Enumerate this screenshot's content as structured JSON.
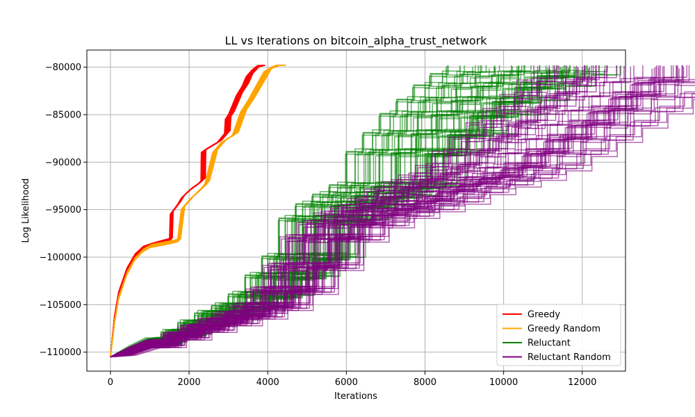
{
  "chart_data": {
    "type": "line",
    "title": "LL vs Iterations on bitcoin_alpha_trust_network",
    "xlabel": "Iterations",
    "ylabel": "Log Likelihood",
    "xlim": [
      -600,
      13100
    ],
    "ylim": [
      -112000,
      -78200
    ],
    "xticks": [
      0,
      2000,
      4000,
      6000,
      8000,
      10000,
      12000
    ],
    "yticks": [
      -110000,
      -105000,
      -100000,
      -95000,
      -90000,
      -85000,
      -80000
    ],
    "grid": true,
    "legend_position": "lower-right",
    "series": [
      {
        "name": "Greedy",
        "color": "#ff0000",
        "runs": 25,
        "x": [
          0,
          100,
          200,
          400,
          600,
          800,
          1000,
          1500,
          1520,
          1700,
          1800,
          2000,
          2200,
          2300,
          2310,
          2500,
          2700,
          2900,
          2920,
          3000,
          3100,
          3200,
          3350,
          3450,
          3600,
          3750
        ],
        "y": [
          -110500,
          -106500,
          -104000,
          -101500,
          -100000,
          -99200,
          -98900,
          -98300,
          -95500,
          -94500,
          -93800,
          -93000,
          -92400,
          -92000,
          -89000,
          -88500,
          -88000,
          -87000,
          -85500,
          -85000,
          -84000,
          -83000,
          -82000,
          -81000,
          -80300,
          -79800
        ]
      },
      {
        "name": "Greedy Random",
        "color": "#ffa500",
        "runs": 25,
        "x": [
          0,
          100,
          200,
          400,
          600,
          800,
          1000,
          1500,
          1700,
          1800,
          2000,
          2300,
          2400,
          2600,
          2800,
          3100,
          3300,
          3500,
          3700,
          3900,
          4100,
          4250
        ],
        "y": [
          -110500,
          -107000,
          -104500,
          -102000,
          -100400,
          -99500,
          -99000,
          -98600,
          -98400,
          -95000,
          -94000,
          -92800,
          -92300,
          -89000,
          -88000,
          -87200,
          -84800,
          -83500,
          -82000,
          -80500,
          -80000,
          -79800
        ]
      },
      {
        "name": "Reluctant",
        "color": "#008000",
        "runs": 60,
        "x": [
          0,
          500,
          1000,
          1500,
          2000,
          2500,
          3000,
          3500,
          4000,
          4500,
          5000,
          5500,
          6000,
          6500,
          7000,
          7500,
          8000,
          8500,
          9000,
          9500,
          10000
        ],
        "y": [
          -110500,
          -109800,
          -108900,
          -108000,
          -107000,
          -106000,
          -105200,
          -104000,
          -102000,
          -100000,
          -96000,
          -94500,
          -93500,
          -92500,
          -89000,
          -87000,
          -85000,
          -83500,
          -82000,
          -80800,
          -79800
        ]
      },
      {
        "name": "Reluctant Random",
        "color": "#800080",
        "runs": 60,
        "x": [
          0,
          500,
          1000,
          1500,
          2000,
          2500,
          3000,
          3500,
          4000,
          4500,
          5000,
          5500,
          6000,
          6500,
          7000,
          7500,
          8000,
          8500,
          9000,
          9500,
          10000,
          10500,
          11000,
          11500,
          12000,
          12500
        ],
        "y": [
          -110500,
          -109900,
          -109100,
          -108300,
          -107500,
          -106800,
          -106100,
          -105200,
          -103500,
          -101000,
          -98000,
          -96500,
          -95500,
          -94800,
          -94000,
          -93000,
          -92200,
          -91500,
          -90500,
          -89000,
          -87500,
          -86000,
          -84500,
          -83000,
          -81500,
          -79800
        ]
      }
    ]
  }
}
